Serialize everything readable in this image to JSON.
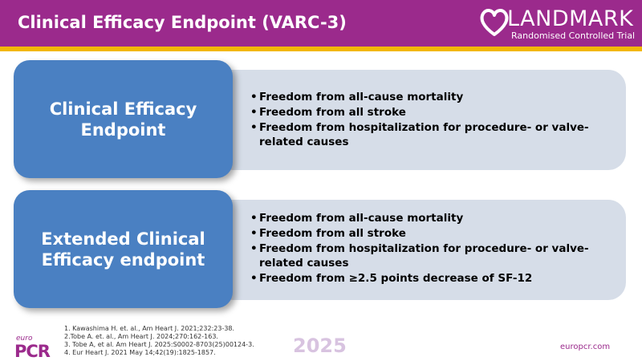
{
  "header": {
    "title": "Clinical Efficacy Endpoint (VARC-3)"
  },
  "logo": {
    "wordmark": "LANDMARK",
    "subtitle": "Randomised Controlled Trial",
    "icon": "heart-icon"
  },
  "sections": [
    {
      "heading": "Clinical Efficacy Endpoint",
      "bullets": [
        "Freedom from all-cause mortality",
        "Freedom from all stroke",
        "Freedom from hospitalization for procedure- or valve-related causes"
      ]
    },
    {
      "heading": "Extended Clinical Efficacy endpoint",
      "bullets": [
        "Freedom from all-cause mortality",
        "Freedom from all stroke",
        "Freedom from hospitalization for procedure- or valve-related causes",
        "Freedom from ≥2.5 points decrease of SF-12"
      ]
    }
  ],
  "footer": {
    "brand_small": "euro",
    "brand_mark": "PCR",
    "references": [
      "1. Kawashima H. et. al., Am Heart J. 2021;232:23-38.",
      "2.Tobe A. et. al., Am Heart J. 2024;270:162-163.",
      "3. Tobe A, et al. Am Heart J. 2025:S0002-8703(25)00124-3.",
      "4. Eur Heart J. 2021 May 14;42(19):1825-1857."
    ],
    "year": "2025",
    "website": "europcr.com"
  },
  "colors": {
    "header": "#9b2a8c",
    "accent_bar": "#f2b705",
    "box": "#4a80c2",
    "panel": "#d6dde8"
  }
}
